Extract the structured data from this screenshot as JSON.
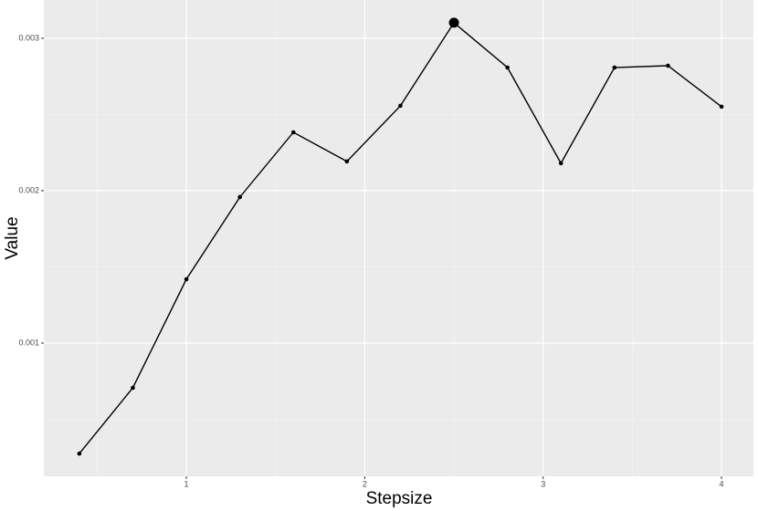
{
  "chart_data": {
    "type": "line",
    "x_label": "Stepsize",
    "y_label": "Value",
    "x": [
      0.4,
      0.7,
      1.0,
      1.3,
      1.6,
      1.9,
      2.2,
      2.5,
      2.8,
      3.1,
      3.4,
      3.7,
      4.0
    ],
    "series": [
      {
        "color": "#000000",
        "values": [
          0.000275,
          0.000707,
          0.001419,
          0.001958,
          0.002383,
          0.002192,
          0.002557,
          0.003102,
          0.002808,
          0.00218,
          0.002808,
          0.00282,
          0.002551
        ]
      }
    ],
    "highlight_max": true,
    "xlim": [
      0.201,
      4.179
    ],
    "xticks": [
      1,
      2,
      3,
      4
    ],
    "ylim": [
      0.000126,
      0.003251
    ],
    "yticks": [
      0.001,
      0.002,
      0.003
    ],
    "grid": true
  }
}
